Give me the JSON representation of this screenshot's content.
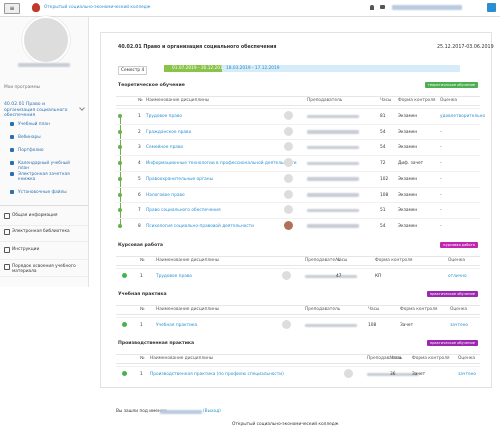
{
  "header": {
    "college": "Открытый социально-экономический колледж"
  },
  "sidebar": {
    "section_title": "Мои программы",
    "program": "40.02.01 Право и организация социального обеспечения",
    "menu": [
      "Учебный план",
      "Вебинары",
      "Портфолио",
      "Календарный учебный план",
      "Электронная зачетная книжка",
      "Установочные файлы"
    ],
    "links": [
      "Общая информация",
      "Электронная библиотека",
      "Инструкции",
      "Порядок освоения учебного материала"
    ]
  },
  "main": {
    "title": "40.02.01 Право и организация социального обеспечения",
    "period": "25.12.2017-03.06.2019",
    "semester": "Семестр 4",
    "date_range_active": "01.07.2019 - 30.12.2019",
    "date_range": "18.03.2019 - 17.12.2019",
    "sections": [
      {
        "title": "Теоретическое обучение",
        "badge": "теоретическое обучение",
        "columns": [
          "№",
          "Наименование дисциплины",
          "Преподаватель",
          "Часы",
          "Форма контроля",
          "Оценка"
        ],
        "rows": [
          {
            "n": 1,
            "name": "Трудовое право",
            "hours": 81,
            "form": "Экзамен",
            "grade": "удовлетворительно"
          },
          {
            "n": 2,
            "name": "Гражданское право",
            "hours": 54,
            "form": "Экзамен",
            "grade": "-"
          },
          {
            "n": 3,
            "name": "Семейное право",
            "hours": 54,
            "form": "Экзамен",
            "grade": "-"
          },
          {
            "n": 4,
            "name": "Информационные технологии в профессиональной деятельности",
            "hours": 72,
            "form": "Диф. зачет",
            "grade": "-"
          },
          {
            "n": 5,
            "name": "Правоохранительные органы",
            "hours": 102,
            "form": "Экзамен",
            "grade": "-"
          },
          {
            "n": 6,
            "name": "Налоговое право",
            "hours": 108,
            "form": "Экзамен",
            "grade": "-"
          },
          {
            "n": 7,
            "name": "Право социального обеспечения",
            "hours": 51,
            "form": "Экзамен",
            "grade": "-"
          },
          {
            "n": 8,
            "name": "Психология социально-правовой деятельности",
            "hours": 54,
            "form": "Экзамен",
            "grade": "-"
          }
        ]
      },
      {
        "title": "Курсовая работа",
        "badge": "курсовая работа",
        "columns": [
          "№",
          "Наименование дисциплины",
          "Преподаватель",
          "Часы",
          "Форма контроля",
          "Оценка"
        ],
        "rows": [
          {
            "n": 1,
            "name": "Трудовое право",
            "hours": 47,
            "form": "КП",
            "grade": "отлично"
          }
        ]
      },
      {
        "title": "Учебная практика",
        "badge": "практическое обучение",
        "columns": [
          "№",
          "Наименование дисциплины",
          "Преподаватель",
          "Часы",
          "Форма контроля",
          "Оценка"
        ],
        "rows": [
          {
            "n": 1,
            "name": "Учебная практика",
            "hours": 108,
            "form": "Зачет",
            "grade": "зачтено"
          }
        ]
      },
      {
        "title": "Производственная практика",
        "badge": "практическое обучение",
        "columns": [
          "№",
          "Наименование дисциплины",
          "Преподаватель",
          "Часы",
          "Форма контроля",
          "Оценка"
        ],
        "rows": [
          {
            "n": 1,
            "name": "Производственная практика (по профилю специальности)",
            "hours": 36,
            "form": "Зачет",
            "grade": "зачтено"
          }
        ]
      }
    ]
  },
  "footer": {
    "logged_in": "Вы зашли под именем",
    "logout": "(Выход)",
    "college": "Открытый социально-экономический колледж"
  }
}
